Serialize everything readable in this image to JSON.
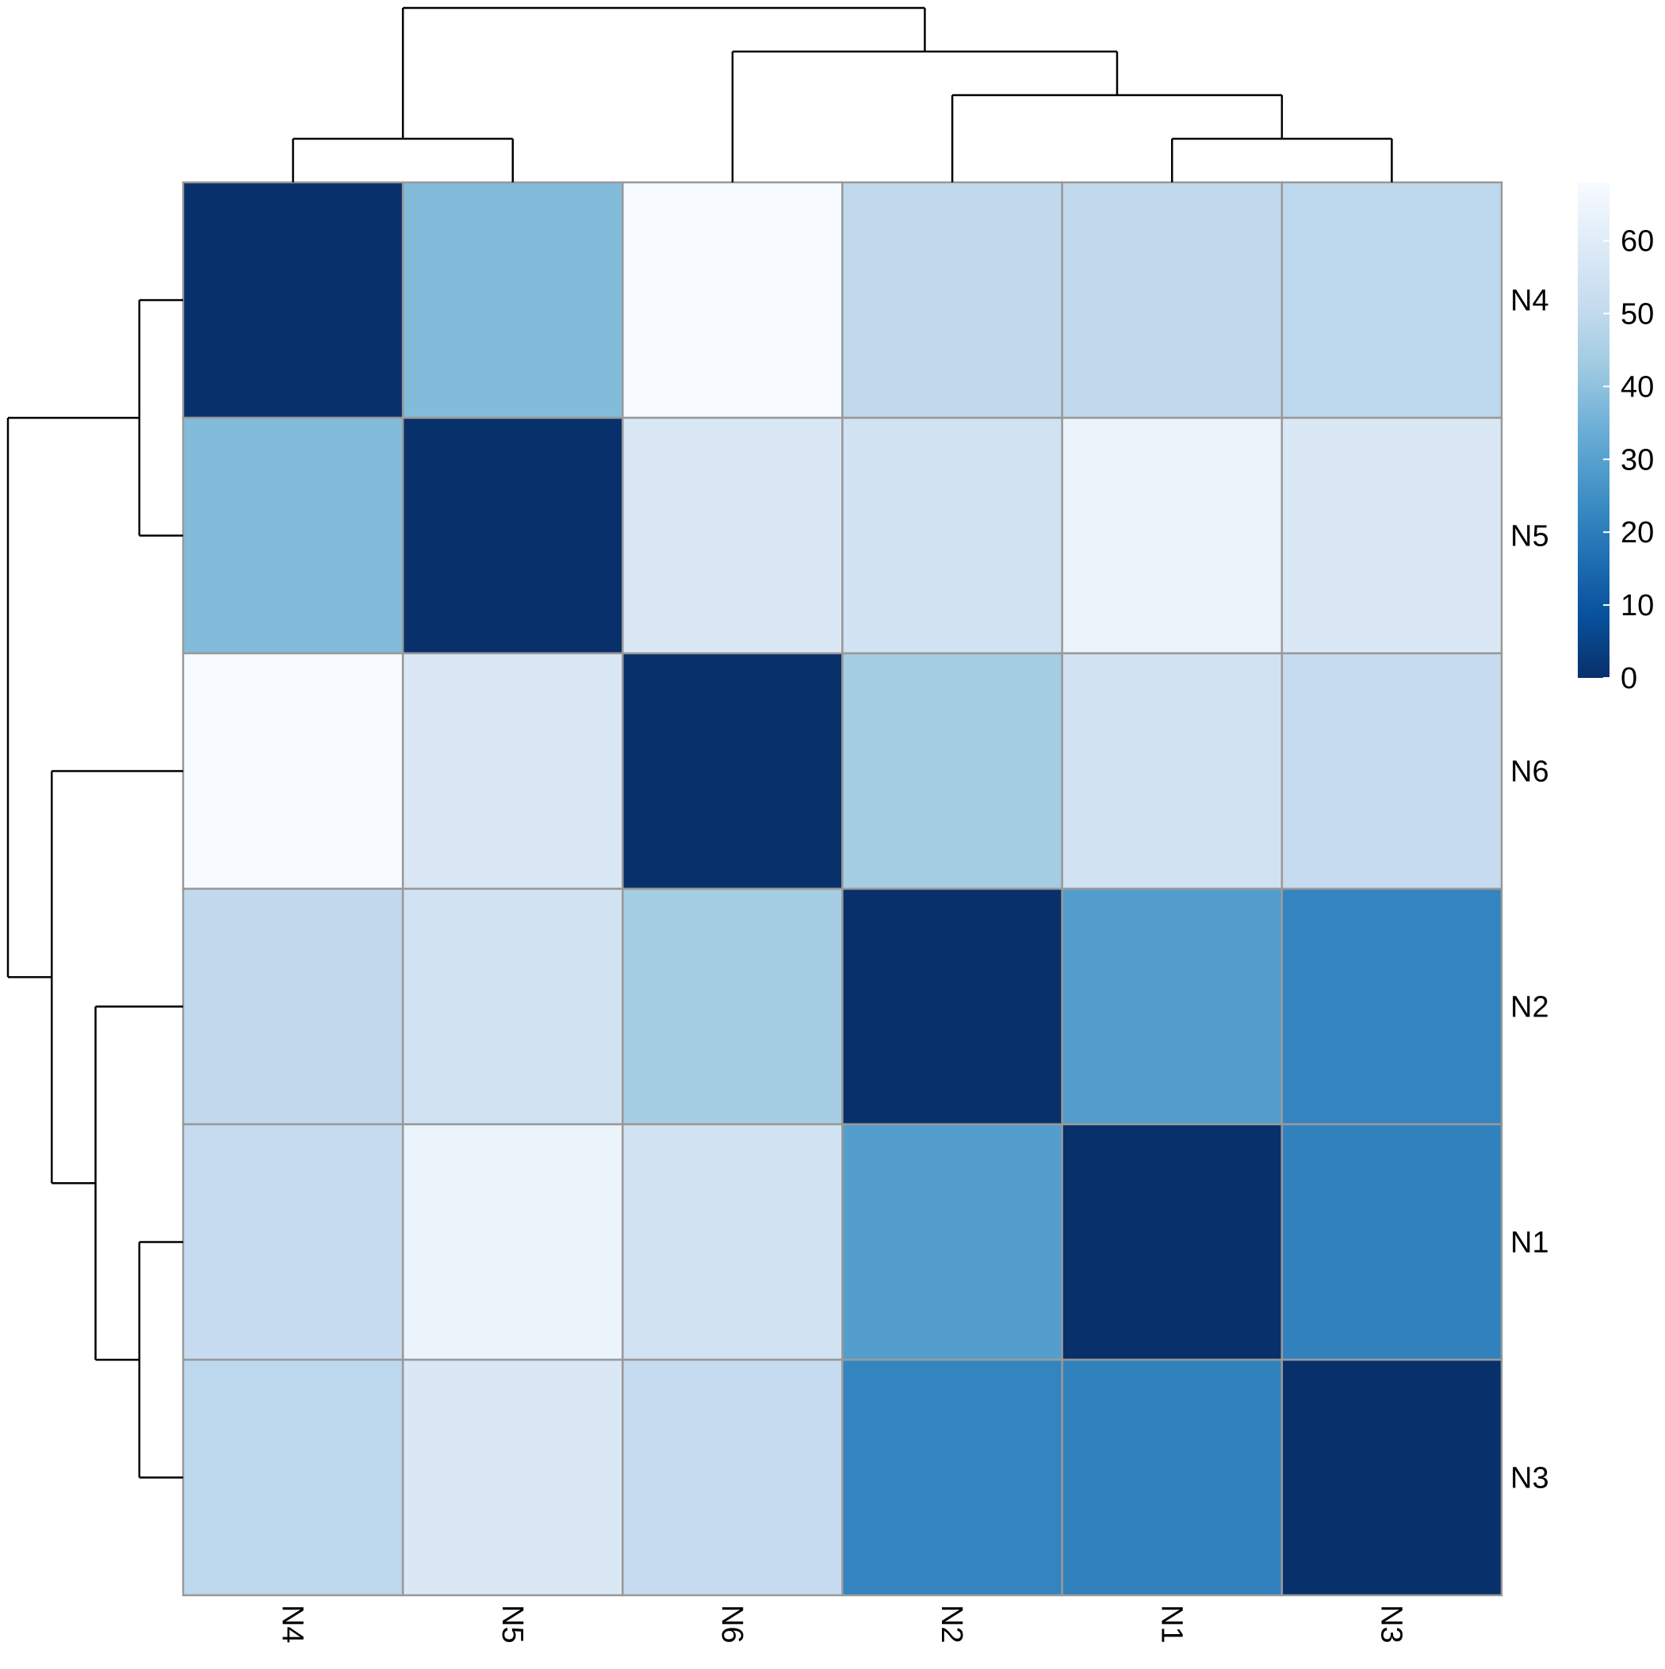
{
  "chart_data": {
    "type": "heatmap",
    "rows": [
      "N4",
      "N5",
      "N6",
      "N2",
      "N1",
      "N3"
    ],
    "columns": [
      "N4",
      "N5",
      "N6",
      "N2",
      "N1",
      "N3"
    ],
    "values": [
      [
        0,
        38,
        68,
        50,
        50,
        49
      ],
      [
        38,
        0,
        58,
        55,
        64,
        58
      ],
      [
        68,
        58,
        0,
        44,
        55,
        51
      ],
      [
        50,
        55,
        44,
        0,
        29,
        22
      ],
      [
        51,
        64,
        55,
        29,
        0,
        21
      ],
      [
        49,
        58,
        51,
        22,
        21,
        0
      ]
    ],
    "colorbar": {
      "min": 0,
      "max": 68,
      "ticks": [
        0,
        10,
        20,
        30,
        40,
        50,
        60
      ],
      "colors": [
        "#08306b",
        "#08519c",
        "#2171b5",
        "#4292c6",
        "#6baed6",
        "#9ecae1",
        "#c6dbef",
        "#deebf7",
        "#f7fbff"
      ]
    },
    "cell_border_color": "#999999",
    "row_dendrogram": "((N4,N5),(N6,(N2,(N1,N3))))",
    "column_dendrogram": "((N4,N5),(N6,(N2,(N1,N3))))"
  }
}
